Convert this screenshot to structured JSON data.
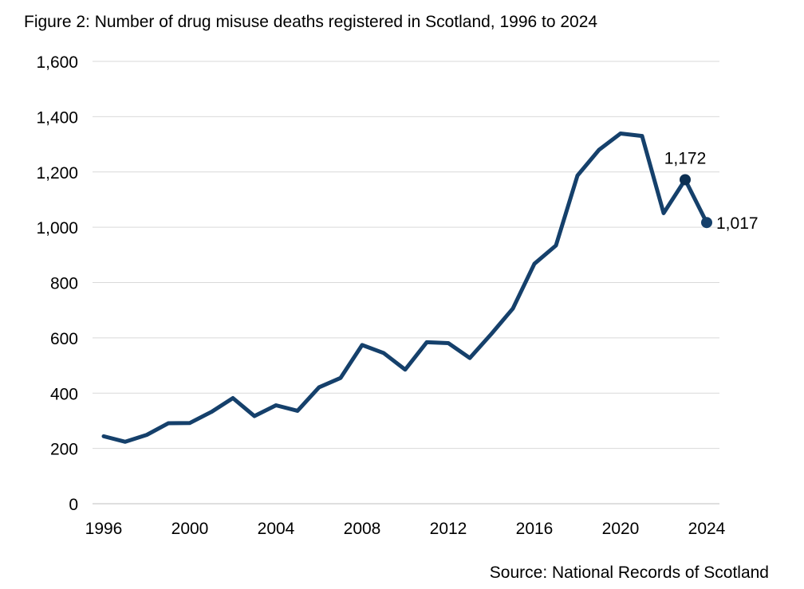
{
  "chart_data": {
    "type": "line",
    "title": "Figure 2: Number of drug misuse deaths registered in Scotland, 1996 to 2024",
    "source": "Source: National Records of Scotland",
    "xlabel": "",
    "ylabel": "",
    "ylim": [
      0,
      1600
    ],
    "xlim": [
      1996,
      2024
    ],
    "grid": true,
    "y_ticks": [
      0,
      200,
      400,
      600,
      800,
      1000,
      1200,
      1400,
      1600
    ],
    "y_tick_labels": [
      "0",
      "200",
      "400",
      "600",
      "800",
      "1,000",
      "1,200",
      "1,400",
      "1,600"
    ],
    "x_ticks": [
      1996,
      2000,
      2004,
      2008,
      2012,
      2016,
      2020,
      2024
    ],
    "x_tick_labels": [
      "1996",
      "2000",
      "2004",
      "2008",
      "2012",
      "2016",
      "2020",
      "2024"
    ],
    "series": [
      {
        "name": "Drug misuse deaths",
        "color": "#15406b",
        "x": [
          1996,
          1997,
          1998,
          1999,
          2000,
          2001,
          2002,
          2003,
          2004,
          2005,
          2006,
          2007,
          2008,
          2009,
          2010,
          2011,
          2012,
          2013,
          2014,
          2015,
          2016,
          2017,
          2018,
          2019,
          2020,
          2021,
          2022,
          2023,
          2024
        ],
        "values": [
          244,
          224,
          249,
          291,
          292,
          332,
          382,
          317,
          356,
          336,
          421,
          455,
          574,
          545,
          485,
          584,
          581,
          527,
          614,
          706,
          868,
          934,
          1187,
          1280,
          1339,
          1330,
          1051,
          1172,
          1017
        ]
      }
    ],
    "annotations": [
      {
        "x": 2023,
        "y": 1172,
        "label": "1,172",
        "marker_color": "#0c2f52"
      },
      {
        "x": 2024,
        "y": 1017,
        "label": "1,017",
        "marker_color": "#15406b"
      }
    ]
  }
}
